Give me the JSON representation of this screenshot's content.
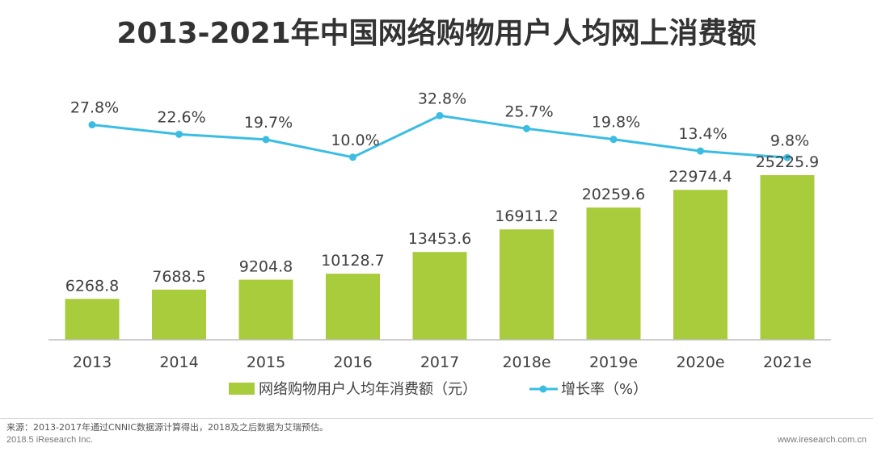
{
  "chart_data": {
    "type": "bar",
    "title": "2013-2021年中国网络购物用户人均网上消费额",
    "categories": [
      "2013",
      "2014",
      "2015",
      "2016",
      "2017",
      "2018e",
      "2019e",
      "2020e",
      "2021e"
    ],
    "series": [
      {
        "name": "网络购物用户人均年消费额（元）",
        "type": "bar",
        "color": "#a9cc3c",
        "values": [
          6268.8,
          7688.5,
          9204.8,
          10128.7,
          13453.6,
          16911.2,
          20259.6,
          22974.4,
          25225.9
        ],
        "labels": [
          "6268.8",
          "7688.5",
          "9204.8",
          "10128.7",
          "13453.6",
          "16911.2",
          "20259.6",
          "22974.4",
          "25225.9"
        ]
      },
      {
        "name": "增长率（%）",
        "type": "line",
        "color": "#3bbde3",
        "values": [
          27.8,
          22.6,
          19.7,
          10.0,
          32.8,
          25.7,
          19.8,
          13.4,
          9.8
        ],
        "labels": [
          "27.8%",
          "22.6%",
          "19.7%",
          "10.0%",
          "32.8%",
          "25.7%",
          "19.8%",
          "13.4%",
          "9.8%"
        ]
      }
    ],
    "legend_position": "bottom",
    "grid": false
  },
  "footer": {
    "source": "来源：2013-2017年通过CNNIC数据源计算得出，2018及之后数据为艾瑞预估。",
    "copyright": "2018.5 iResearch Inc.",
    "url": "www.iresearch.com.cn"
  }
}
